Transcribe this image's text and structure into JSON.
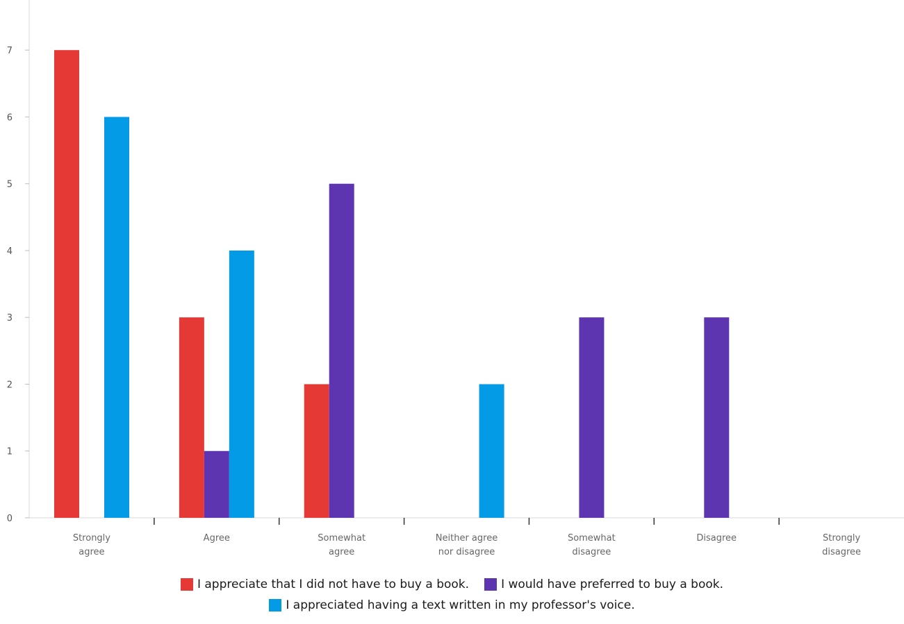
{
  "chart_data": {
    "type": "bar",
    "categories": [
      [
        "Strongly",
        "agree"
      ],
      [
        "Agree"
      ],
      [
        "Somewhat",
        "agree"
      ],
      [
        "Neither agree",
        "nor disagree"
      ],
      [
        "Somewhat",
        "disagree"
      ],
      [
        "Disagree"
      ],
      [
        "Strongly",
        "disagree"
      ]
    ],
    "series": [
      {
        "name": "I appreciate that I did not have to buy a book.",
        "color": "#E53935",
        "values": [
          7,
          3,
          2,
          0,
          0,
          0,
          0
        ]
      },
      {
        "name": "I would have preferred to buy a book.",
        "color": "#5E35B1",
        "values": [
          0,
          1,
          5,
          0,
          3,
          3,
          0
        ]
      },
      {
        "name": "I appreciated having a text written in my professor's voice.",
        "color": "#039BE5",
        "values": [
          6,
          4,
          0,
          2,
          0,
          0,
          0
        ]
      }
    ],
    "yticks": [
      0,
      1,
      2,
      3,
      4,
      5,
      6,
      7
    ],
    "ylim": [
      0,
      7.75
    ],
    "grid": false,
    "legend_position": "bottom",
    "title": "",
    "xlabel": "",
    "ylabel": ""
  }
}
